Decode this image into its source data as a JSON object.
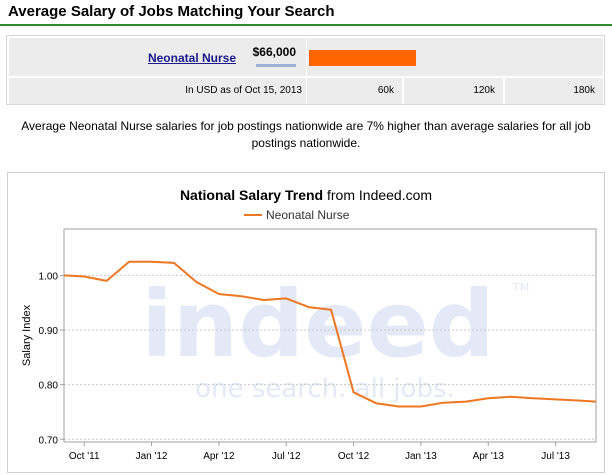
{
  "header": {
    "title": "Average Salary of Jobs Matching Your Search"
  },
  "salary_table": {
    "job_title": "Neonatal Nurse",
    "salary": "$66,000",
    "salary_value": 66000,
    "scale_max": 180000,
    "date_note": "In USD as of Oct 15, 2013",
    "scale_ticks": [
      "60k",
      "120k",
      "180k"
    ],
    "bar_color": "#ff6600"
  },
  "summary": "Average Neonatal Nurse salaries for job postings nationwide are 7% higher than average salaries for all job postings nationwide.",
  "chart_data": {
    "type": "line",
    "title_bold": "National Salary Trend",
    "title_rest": " from Indeed.com",
    "ylabel": "Salary Index",
    "watermark_logo": "indeed",
    "watermark_tagline": "one search. all jobs.",
    "watermark_tm": "TM",
    "x_tick_labels": [
      "Oct '11",
      "Jan '12",
      "Apr '12",
      "Jul '12",
      "Oct '12",
      "Jan '13",
      "Apr '13",
      "Jul '13"
    ],
    "x_tick_months": [
      0,
      3,
      6,
      9,
      12,
      15,
      18,
      21
    ],
    "xlim": [
      -0.9,
      22.8
    ],
    "y_ticks": [
      0.7,
      0.8,
      0.9,
      1.0
    ],
    "y_tick_labels": [
      "0.70",
      "0.80",
      "0.90",
      "1.00"
    ],
    "ylim": [
      0.695,
      1.085
    ],
    "grid": true,
    "legend_position": "top",
    "series": [
      {
        "name": "Neonatal Nurse",
        "color": "#ee7722",
        "x": [
          -0.9,
          0,
          1,
          2,
          3,
          4,
          5,
          6,
          7,
          8,
          9,
          10,
          11,
          12,
          13,
          14,
          15,
          16,
          17,
          18,
          19,
          20,
          21,
          22,
          22.8
        ],
        "values": [
          1.0,
          0.998,
          0.99,
          1.025,
          1.025,
          1.023,
          0.988,
          0.966,
          0.962,
          0.955,
          0.958,
          0.942,
          0.937,
          0.786,
          0.766,
          0.76,
          0.76,
          0.767,
          0.769,
          0.775,
          0.778,
          0.775,
          0.773,
          0.771,
          0.769
        ]
      }
    ]
  }
}
